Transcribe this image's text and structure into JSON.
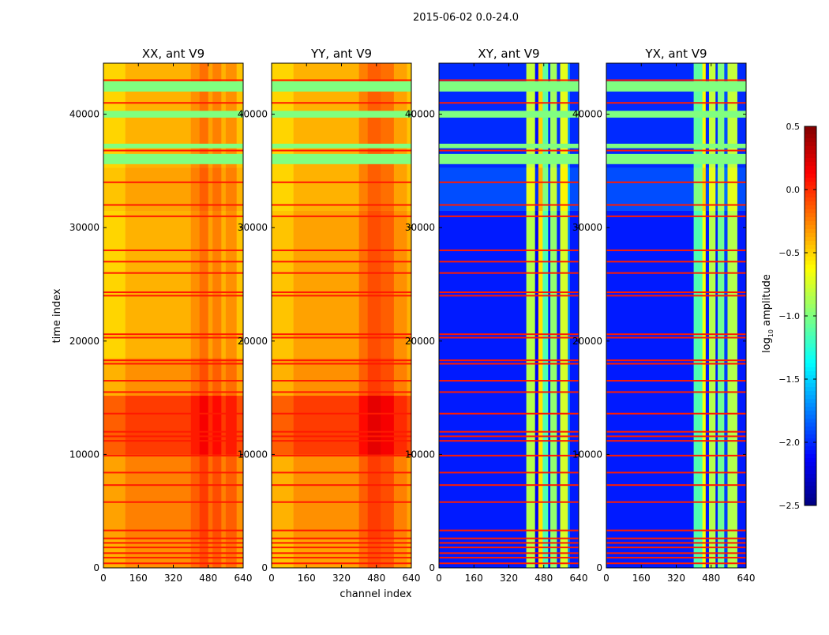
{
  "chart_data": {
    "type": "heatmap",
    "title": "2015-06-02 0.0-24.0",
    "xlabel": "channel index",
    "ylabel": "time index",
    "xlim": [
      0,
      640
    ],
    "ylim": [
      0,
      44500
    ],
    "xticks": [
      "0",
      "160",
      "320",
      "480",
      "640"
    ],
    "xtick_values": [
      0,
      160,
      320,
      480,
      640
    ],
    "yticks": [
      "0",
      "10000",
      "20000",
      "30000",
      "40000"
    ],
    "ytick_values": [
      0,
      10000,
      20000,
      30000,
      40000
    ],
    "colorbar": {
      "label_main": "log",
      "label_sub": "10",
      "label_rest": " amplitude",
      "range": [
        -2.5,
        0.5
      ],
      "ticks": [
        "0.5",
        "0.0",
        "−0.5",
        "−1.0",
        "−1.5",
        "−2.0",
        "−2.5"
      ],
      "tick_values": [
        0.5,
        0.0,
        -0.5,
        -1.0,
        -1.5,
        -2.0,
        -2.5
      ],
      "colormap": "jet"
    },
    "flag_value_bands": [
      [
        35600,
        36500
      ],
      [
        37000,
        37400
      ],
      [
        39700,
        40300
      ],
      [
        42000,
        42900
      ]
    ],
    "flag_band_value": -1.0,
    "flag_line_value": 0.05,
    "flag_lines": [
      400,
      900,
      1300,
      1800,
      2200,
      2600,
      3300,
      5800,
      7300,
      8400,
      9900,
      11200,
      11600,
      12000,
      13600,
      15500,
      16500,
      18000,
      18300,
      20300,
      20600,
      24000,
      24300,
      26000,
      27000,
      28000,
      31000,
      32000,
      34000,
      36800,
      41000,
      43000
    ],
    "panels": [
      {
        "title": "XX, ant V9",
        "segments": [
          [
            0,
            2500,
            -0.3
          ],
          [
            2500,
            10000,
            -0.25
          ],
          [
            10000,
            15200,
            -0.05
          ],
          [
            15200,
            18500,
            -0.3
          ],
          [
            18500,
            31500,
            -0.4
          ],
          [
            31500,
            35300,
            -0.35
          ],
          [
            35300,
            44500,
            -0.4
          ]
        ],
        "channel_offsets": [
          [
            0,
            100,
            -0.1
          ],
          [
            100,
            400,
            0
          ],
          [
            400,
            440,
            0.1
          ],
          [
            440,
            480,
            0.2
          ],
          [
            480,
            500,
            0.05
          ],
          [
            500,
            540,
            0.15
          ],
          [
            540,
            560,
            0
          ],
          [
            560,
            610,
            0.1
          ],
          [
            610,
            640,
            -0.05
          ]
        ]
      },
      {
        "title": "YY, ant V9",
        "segments": [
          [
            0,
            2500,
            -0.35
          ],
          [
            2500,
            10000,
            -0.3
          ],
          [
            10000,
            15200,
            -0.05
          ],
          [
            15200,
            18500,
            -0.3
          ],
          [
            18500,
            31500,
            -0.35
          ],
          [
            31500,
            44500,
            -0.4
          ]
        ],
        "channel_offsets": [
          [
            0,
            100,
            -0.1
          ],
          [
            100,
            400,
            0
          ],
          [
            400,
            440,
            0.15
          ],
          [
            440,
            500,
            0.25
          ],
          [
            500,
            560,
            0.2
          ],
          [
            560,
            620,
            0.05
          ],
          [
            620,
            640,
            -0.05
          ]
        ]
      },
      {
        "title": "XY, ant V9",
        "segments": [
          [
            0,
            31500,
            -2.05
          ],
          [
            31500,
            35300,
            -1.9
          ],
          [
            35300,
            44500,
            -2.0
          ]
        ],
        "channel_offsets": [
          [
            0,
            400,
            0
          ],
          [
            400,
            440,
            1.2
          ],
          [
            440,
            455,
            -0.1
          ],
          [
            455,
            475,
            1.5
          ],
          [
            475,
            500,
            0.9
          ],
          [
            500,
            510,
            0
          ],
          [
            510,
            540,
            1.1
          ],
          [
            540,
            555,
            0
          ],
          [
            555,
            590,
            1.3
          ],
          [
            590,
            600,
            0.3
          ],
          [
            600,
            640,
            0
          ]
        ]
      },
      {
        "title": "YX, ant V9",
        "segments": [
          [
            0,
            31500,
            -2.05
          ],
          [
            31500,
            35300,
            -1.9
          ],
          [
            35300,
            44500,
            -2.0
          ]
        ],
        "channel_offsets": [
          [
            0,
            400,
            0
          ],
          [
            400,
            440,
            0.9
          ],
          [
            440,
            455,
            1.4
          ],
          [
            455,
            470,
            0
          ],
          [
            470,
            500,
            1.2
          ],
          [
            500,
            510,
            0
          ],
          [
            510,
            540,
            1.0
          ],
          [
            540,
            555,
            0.1
          ],
          [
            555,
            600,
            1.2
          ],
          [
            600,
            640,
            0
          ]
        ]
      }
    ]
  }
}
